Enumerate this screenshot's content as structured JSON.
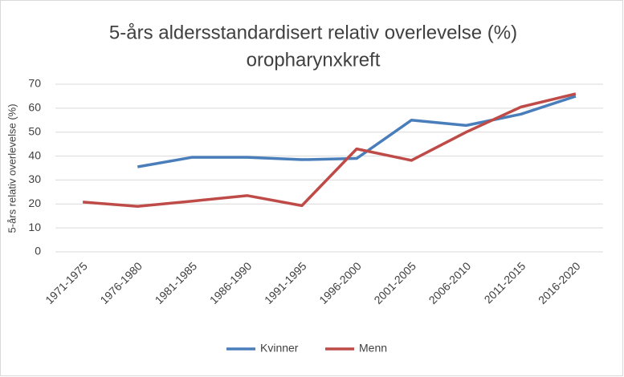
{
  "chart_data": {
    "type": "line",
    "title": [
      "5-års aldersstandardisert relativ overlevelse (%)",
      "oropharynxkreft"
    ],
    "y_label": "5-års relativ overlevelse (%)",
    "categories": [
      "1971-1975",
      "1976-1980",
      "1981-1985",
      "1986-1990",
      "1991-1995",
      "1996-2000",
      "2001-2005",
      "2006-2010",
      "2011-2015",
      "2016-2020"
    ],
    "series": [
      {
        "name": "Kvinner",
        "color": "#4a7ebb",
        "values": [
          null,
          35.5,
          39.5,
          39.5,
          38.5,
          39,
          55,
          52.8,
          57.5,
          65
        ]
      },
      {
        "name": "Menn",
        "color": "#be4b48",
        "values": [
          20.8,
          19,
          21.2,
          23.5,
          19.3,
          43,
          38.2,
          50,
          60.5,
          66
        ]
      }
    ],
    "ylim": [
      0,
      70
    ],
    "yticks": [
      0,
      10,
      20,
      30,
      40,
      50,
      60,
      70
    ],
    "grid": true,
    "legend": "bottom"
  }
}
